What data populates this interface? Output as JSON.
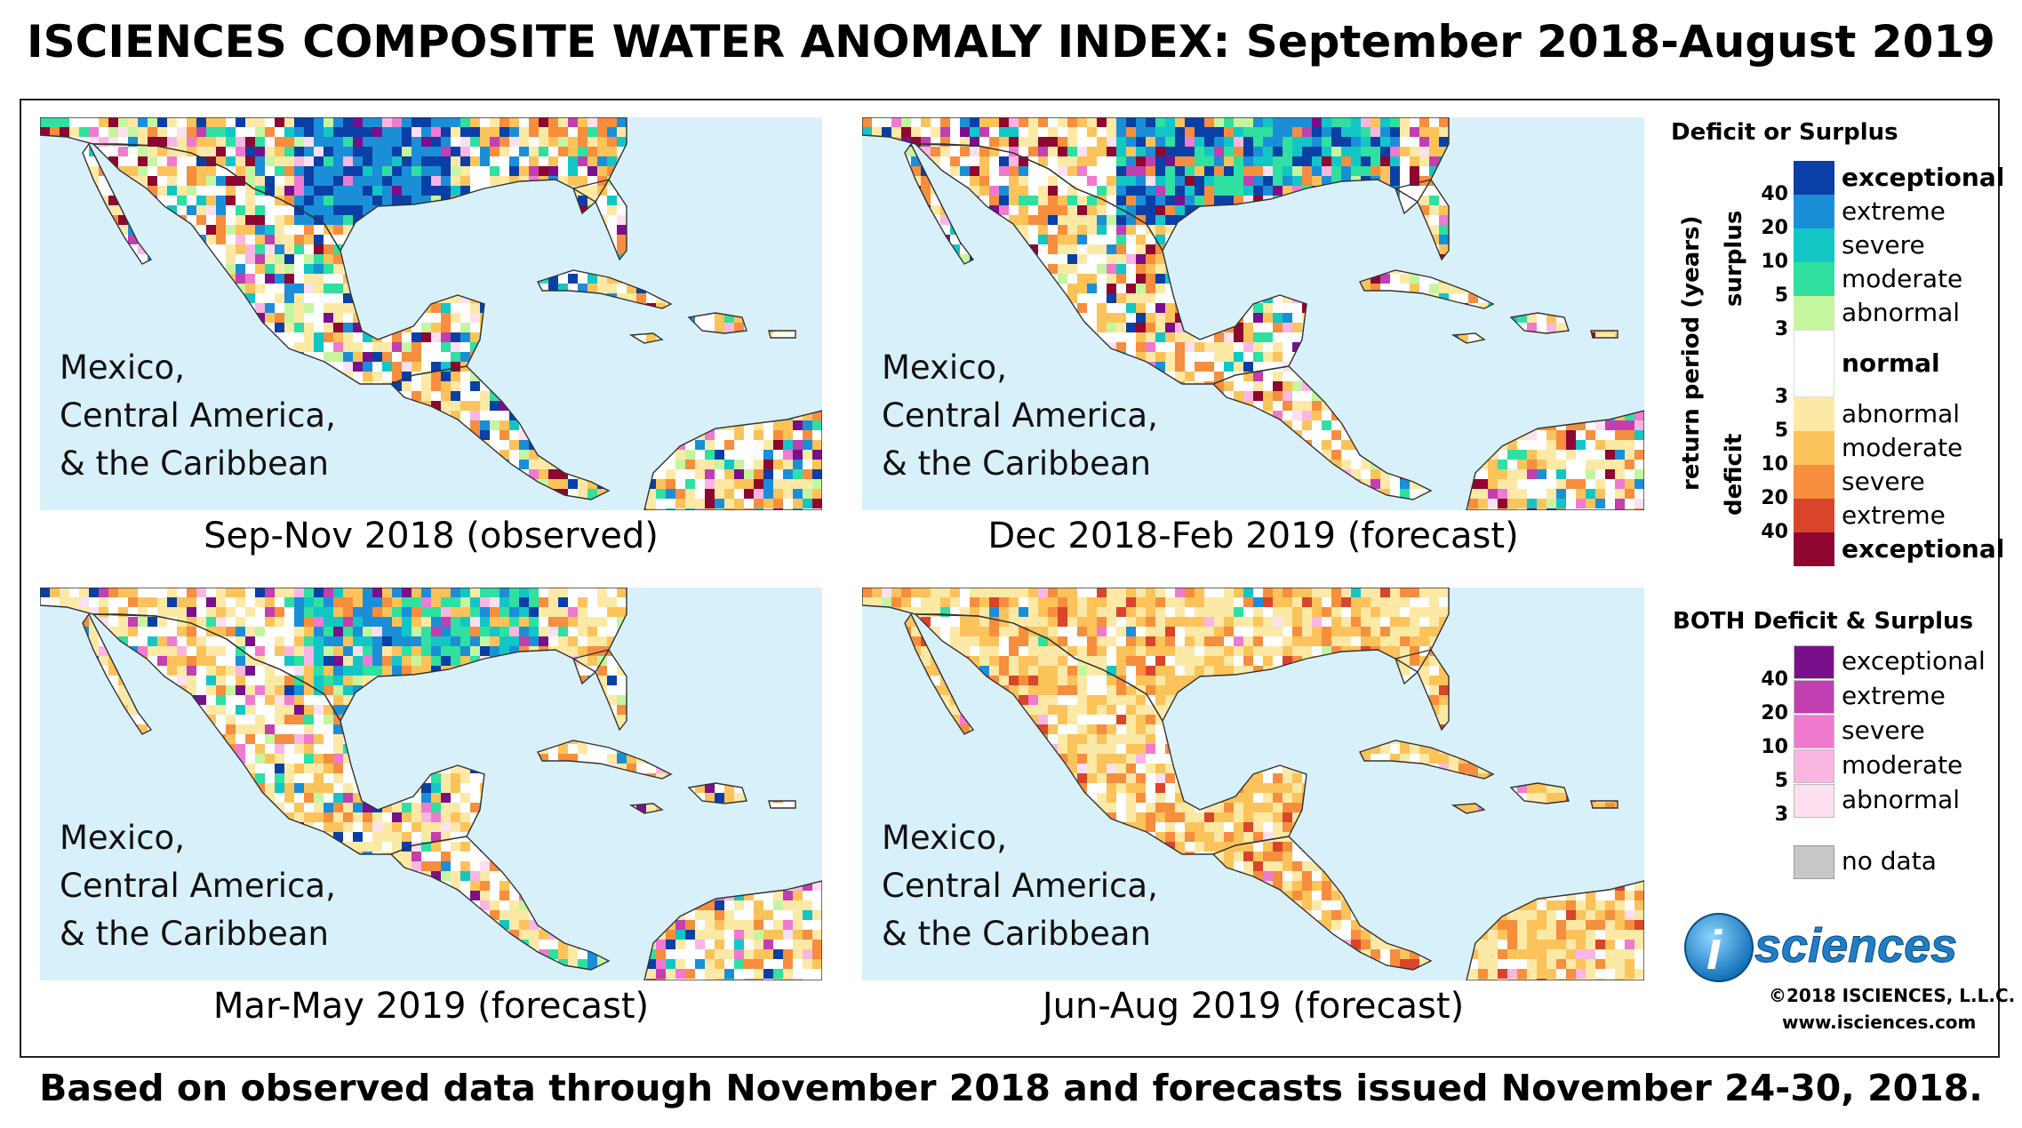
{
  "title": "ISCIENCES COMPOSITE WATER ANOMALY INDEX: September 2018-August 2019",
  "footer": "Based on observed data through November 2018 and forecasts issued November 24-30, 2018.",
  "region_label_lines": [
    "Mexico,",
    "Central America,",
    "& the Caribbean"
  ],
  "panels": [
    {
      "caption": "Sep-Nov 2018 (observed)",
      "profile": "mixed-wet"
    },
    {
      "caption": "Dec 2018-Feb 2019 (forecast)",
      "profile": "wet-north"
    },
    {
      "caption": "Mar-May 2019 (forecast)",
      "profile": "mixed"
    },
    {
      "caption": "Jun-Aug 2019 (forecast)",
      "profile": "dry"
    }
  ],
  "legend": {
    "heading1": "Deficit or Surplus",
    "axis_label": "return period (years)",
    "surplus_label": "surplus",
    "deficit_label": "deficit",
    "surplus_items": [
      {
        "label": "exceptional",
        "color": "#0a3fa6",
        "bold": true
      },
      {
        "label": "extreme",
        "color": "#1a8fd8",
        "bold": false
      },
      {
        "label": "severe",
        "color": "#12c6c6",
        "bold": false
      },
      {
        "label": "moderate",
        "color": "#2fe0a0",
        "bold": false
      },
      {
        "label": "abnormal",
        "color": "#c6f5a0",
        "bold": false
      }
    ],
    "surplus_numbers": [
      "40",
      "20",
      "10",
      "5",
      "3"
    ],
    "normal_label": "normal",
    "deficit_items": [
      {
        "label": "abnormal",
        "color": "#fde9a6",
        "bold": false
      },
      {
        "label": "moderate",
        "color": "#fcc35a",
        "bold": false
      },
      {
        "label": "severe",
        "color": "#f68e3e",
        "bold": false
      },
      {
        "label": "extreme",
        "color": "#d9452b",
        "bold": false
      },
      {
        "label": "exceptional",
        "color": "#8f0630",
        "bold": true
      }
    ],
    "deficit_numbers": [
      "3",
      "5",
      "10",
      "20",
      "40"
    ],
    "heading2": "BOTH Deficit & Surplus",
    "both_items": [
      {
        "label": "exceptional",
        "color": "#7a0f8c"
      },
      {
        "label": "extreme",
        "color": "#c13fb0"
      },
      {
        "label": "severe",
        "color": "#f07ad0"
      },
      {
        "label": "moderate",
        "color": "#f9b6e3"
      },
      {
        "label": "abnormal",
        "color": "#fde0f0"
      }
    ],
    "both_numbers": [
      "40",
      "20",
      "10",
      "5",
      "3"
    ],
    "nodata_label": "no data",
    "nodata_color": "#c8c8c8"
  },
  "logo": {
    "i": "i",
    "text": "sciences"
  },
  "copyright": "©2018 ISCIENCES, L.L.C.",
  "website": "www.isciences.com"
}
